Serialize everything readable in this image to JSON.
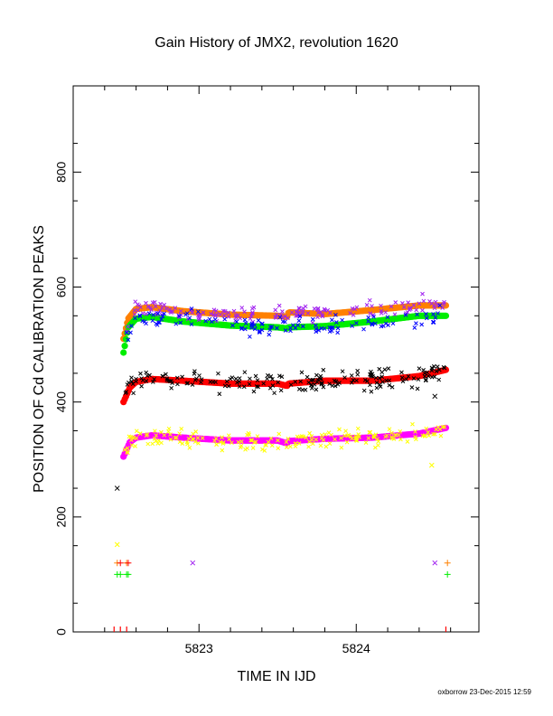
{
  "chart_data": {
    "type": "scatter",
    "title": "Gain History of JMX2, revolution 1620",
    "xlabel": "TIME IN IJD",
    "ylabel": "POSITION OF Cd CALIBRATION PEAKS",
    "footer": "oxborrow 23-Dec-2015 12:59",
    "xlim": [
      5822.2,
      5824.78
    ],
    "ylim": [
      0,
      950
    ],
    "xticks": [
      5823,
      5824
    ],
    "yticks": [
      0,
      200,
      400,
      600,
      800
    ],
    "grid": false,
    "colors": {
      "purple": "#a020f0",
      "orange": "#ff8000",
      "green": "#00ee00",
      "blue": "#0000ff",
      "black": "#000000",
      "red": "#ff0000",
      "yellow": "#ffff00",
      "magenta": "#ff00ff"
    },
    "fit_curves": [
      {
        "color": "orange",
        "points": [
          [
            5822.52,
            510
          ],
          [
            5822.55,
            545
          ],
          [
            5822.6,
            562
          ],
          [
            5822.7,
            565
          ],
          [
            5822.9,
            558
          ],
          [
            5823.2,
            552
          ],
          [
            5823.5,
            550
          ],
          [
            5823.56,
            548
          ],
          [
            5823.57,
            556
          ],
          [
            5823.8,
            553
          ],
          [
            5824.1,
            560
          ],
          [
            5824.4,
            568
          ],
          [
            5824.57,
            568
          ]
        ]
      },
      {
        "color": "green",
        "points": [
          [
            5822.52,
            486
          ],
          [
            5822.55,
            530
          ],
          [
            5822.6,
            545
          ],
          [
            5822.7,
            548
          ],
          [
            5822.9,
            540
          ],
          [
            5823.2,
            533
          ],
          [
            5823.5,
            530
          ],
          [
            5823.56,
            528
          ],
          [
            5823.57,
            530
          ],
          [
            5823.8,
            532
          ],
          [
            5824.1,
            540
          ],
          [
            5824.4,
            550
          ],
          [
            5824.57,
            550
          ]
        ]
      },
      {
        "color": "red",
        "points": [
          [
            5822.52,
            400
          ],
          [
            5822.56,
            425
          ],
          [
            5822.6,
            435
          ],
          [
            5822.7,
            440
          ],
          [
            5822.9,
            437
          ],
          [
            5823.2,
            432
          ],
          [
            5823.5,
            432
          ],
          [
            5823.56,
            428
          ],
          [
            5823.57,
            432
          ],
          [
            5823.8,
            437
          ],
          [
            5824.1,
            437
          ],
          [
            5824.4,
            445
          ],
          [
            5824.57,
            456
          ]
        ]
      },
      {
        "color": "magenta",
        "points": [
          [
            5822.52,
            305
          ],
          [
            5822.56,
            330
          ],
          [
            5822.6,
            338
          ],
          [
            5822.7,
            342
          ],
          [
            5822.9,
            338
          ],
          [
            5823.2,
            333
          ],
          [
            5823.5,
            333
          ],
          [
            5823.56,
            328
          ],
          [
            5823.57,
            332
          ],
          [
            5823.8,
            336
          ],
          [
            5824.1,
            338
          ],
          [
            5824.4,
            345
          ],
          [
            5824.57,
            355
          ]
        ]
      }
    ],
    "scatter_bands": [
      {
        "color": "purple",
        "center_curve": "orange",
        "spread": 14,
        "count": 150
      },
      {
        "color": "blue",
        "center_curve": "green",
        "spread": 16,
        "count": 120
      },
      {
        "color": "black",
        "center_curve": "red",
        "spread": 16,
        "count": 180
      },
      {
        "color": "yellow",
        "center_curve": "magenta",
        "spread": 15,
        "count": 180
      }
    ],
    "extra_points": [
      {
        "x": 5822.48,
        "y": 250,
        "color": "black",
        "marker": "x"
      },
      {
        "x": 5822.48,
        "y": 152,
        "color": "yellow",
        "marker": "x"
      },
      {
        "x": 5822.48,
        "y": 120,
        "color": "orange",
        "marker": "+"
      },
      {
        "x": 5822.5,
        "y": 120,
        "color": "red",
        "marker": "+"
      },
      {
        "x": 5822.48,
        "y": 100,
        "color": "green",
        "marker": "+"
      },
      {
        "x": 5822.5,
        "y": 100,
        "color": "green",
        "marker": "+"
      },
      {
        "x": 5822.54,
        "y": 120,
        "color": "orange",
        "marker": "+"
      },
      {
        "x": 5822.55,
        "y": 120,
        "color": "red",
        "marker": "+"
      },
      {
        "x": 5822.54,
        "y": 100,
        "color": "green",
        "marker": "+"
      },
      {
        "x": 5822.55,
        "y": 100,
        "color": "green",
        "marker": "+"
      },
      {
        "x": 5822.96,
        "y": 120,
        "color": "purple",
        "marker": "x"
      },
      {
        "x": 5824.5,
        "y": 120,
        "color": "purple",
        "marker": "x"
      },
      {
        "x": 5824.58,
        "y": 120,
        "color": "orange",
        "marker": "+"
      },
      {
        "x": 5824.58,
        "y": 100,
        "color": "green",
        "marker": "+"
      },
      {
        "x": 5824.48,
        "y": 290,
        "color": "yellow",
        "marker": "x"
      },
      {
        "x": 5824.5,
        "y": 410,
        "color": "black",
        "marker": "x"
      }
    ],
    "rug_marks": [
      {
        "x": 5822.46,
        "color": "red"
      },
      {
        "x": 5822.5,
        "color": "red"
      },
      {
        "x": 5822.54,
        "color": "red"
      },
      {
        "x": 5824.57,
        "color": "red"
      }
    ]
  }
}
